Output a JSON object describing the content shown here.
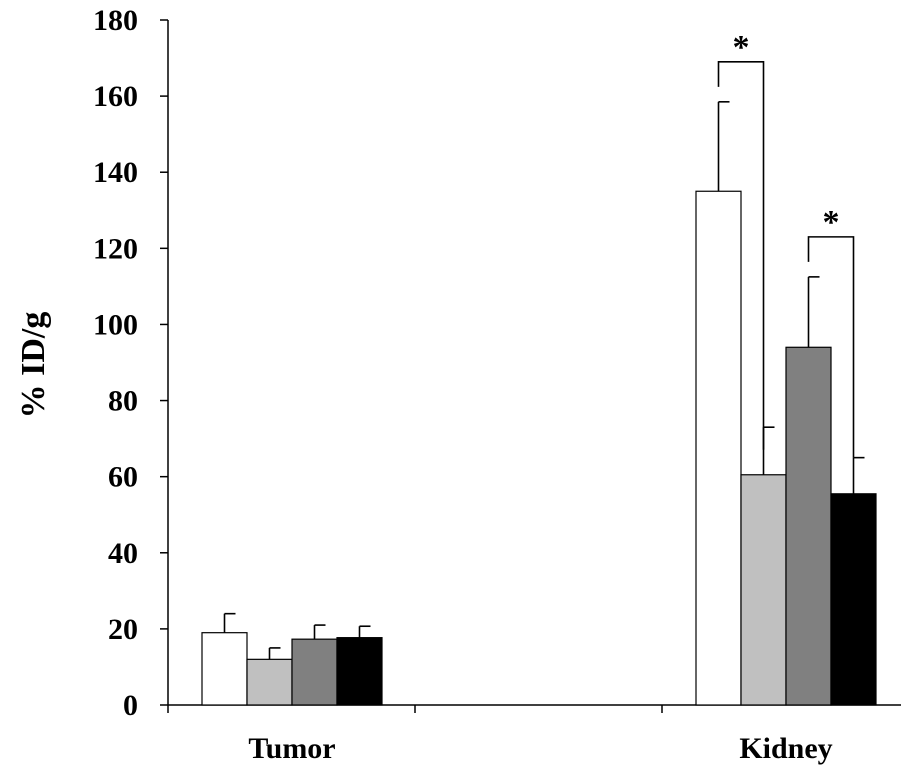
{
  "chart_data": {
    "type": "bar",
    "title": "",
    "xlabel": "",
    "ylabel": "% ID/g",
    "ylim": [
      0,
      180
    ],
    "yticks": [
      0,
      20,
      40,
      60,
      80,
      100,
      120,
      140,
      160,
      180
    ],
    "categories": [
      "Tumor",
      "Kidney"
    ],
    "series": [
      {
        "color": "#ffffff",
        "values": [
          19,
          135
        ],
        "errors": [
          5,
          23.5
        ]
      },
      {
        "color": "#c0c0c0",
        "values": [
          12,
          60.5
        ],
        "errors": [
          3,
          12.5
        ]
      },
      {
        "color": "#808080",
        "values": [
          17.3,
          94
        ],
        "errors": [
          3.7,
          18.5
        ]
      },
      {
        "color": "#000000",
        "values": [
          17.7,
          55.5
        ],
        "errors": [
          3,
          9.5
        ]
      }
    ],
    "significance": [
      {
        "category": "Kidney",
        "from_series": 0,
        "to_series": 1,
        "label": "*"
      },
      {
        "category": "Kidney",
        "from_series": 2,
        "to_series": 3,
        "label": "*"
      }
    ],
    "grid": false,
    "legend": "none"
  }
}
